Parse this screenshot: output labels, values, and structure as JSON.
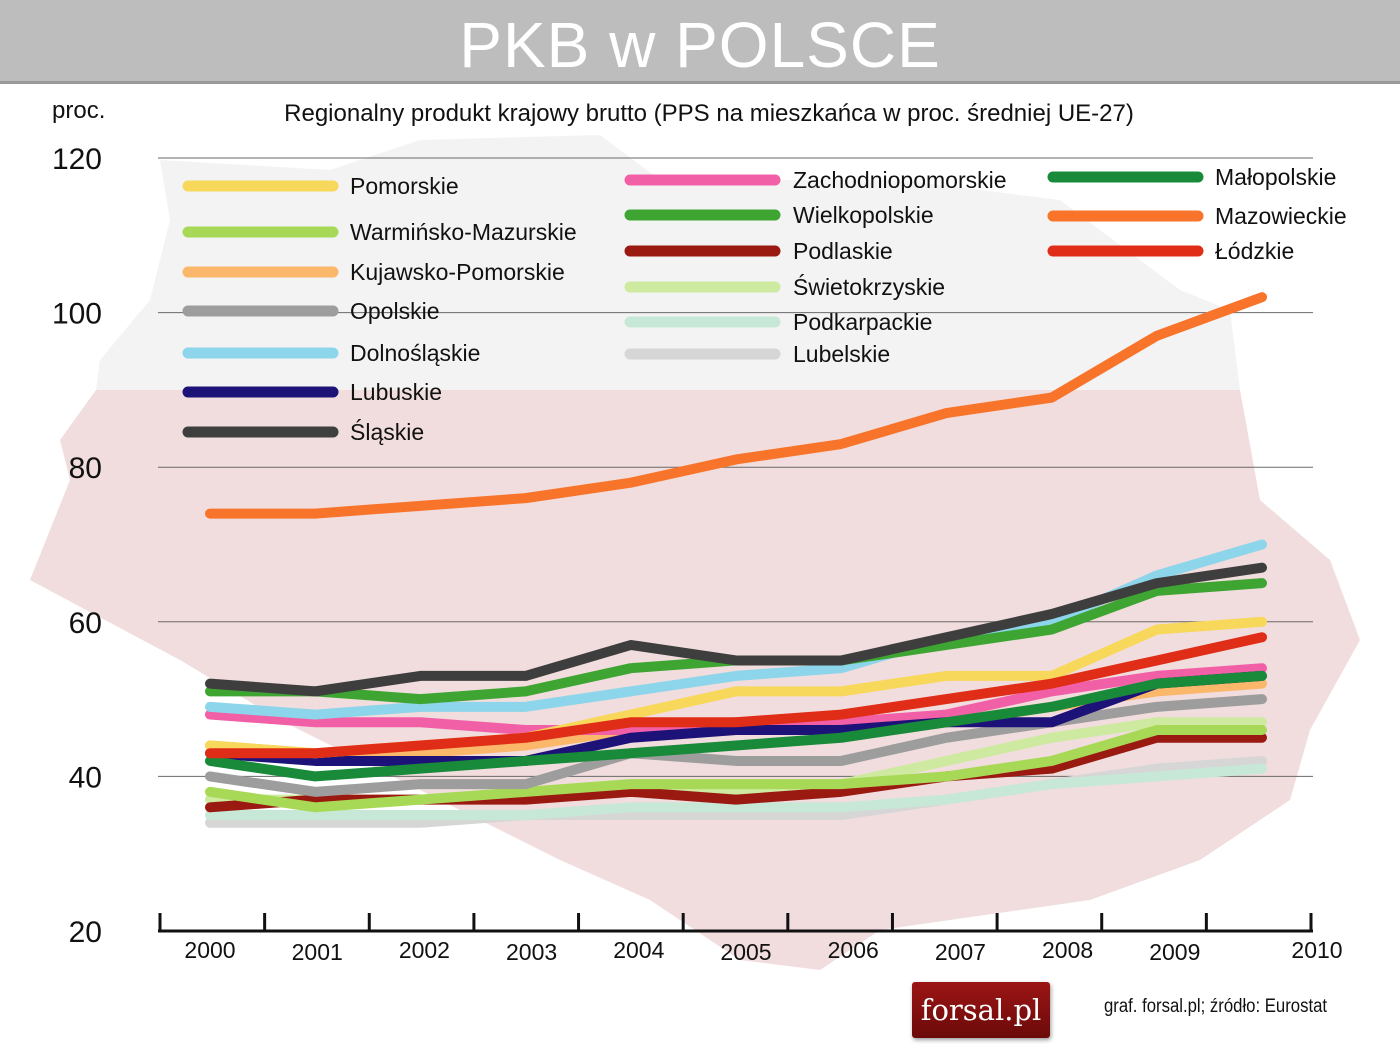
{
  "header": {
    "title": "PKB w POLSCE"
  },
  "footer": {
    "source": "graf. forsal.pl;  źródło: Eurostat",
    "logo_text": "forsal.pl"
  },
  "chart_data": {
    "type": "line",
    "title": "Regionalny produkt krajowy brutto (PPS na mieszkańca w proc. średniej UE-27)",
    "ylabel": "proc.",
    "xlabel": "",
    "ylim": [
      20,
      120
    ],
    "yticks": [
      20,
      40,
      60,
      80,
      100,
      120
    ],
    "grid": true,
    "legend_position": "top",
    "x": [
      "2000",
      "2001",
      "2002",
      "2003",
      "2004",
      "2005",
      "2006",
      "2007",
      "2008",
      "2009",
      "2010"
    ],
    "series": [
      {
        "name": "Pomorskie",
        "color": "#f7d85a",
        "values": [
          44,
          43,
          44,
          45,
          48,
          51,
          51,
          53,
          53,
          59,
          60
        ]
      },
      {
        "name": "Warmińsko-Mazurskie",
        "color": "#a8d956",
        "values": [
          38,
          36,
          37,
          38,
          39,
          39,
          39,
          40,
          42,
          46,
          46
        ]
      },
      {
        "name": "Kujawsko-Pomorskie",
        "color": "#fbb76a",
        "values": [
          44,
          43,
          43,
          44,
          46,
          46,
          46,
          47,
          49,
          51,
          52
        ]
      },
      {
        "name": "Opolskie",
        "color": "#9d9d9d",
        "values": [
          40,
          38,
          39,
          39,
          43,
          42,
          42,
          45,
          47,
          49,
          50
        ]
      },
      {
        "name": "Dolnośląskie",
        "color": "#8dd5ea",
        "values": [
          49,
          48,
          49,
          49,
          51,
          53,
          54,
          58,
          60,
          66,
          70
        ]
      },
      {
        "name": "Lubuskie",
        "color": "#1c1278",
        "values": [
          43,
          42,
          42,
          42,
          45,
          46,
          46,
          47,
          47,
          52,
          53
        ]
      },
      {
        "name": "Śląskie",
        "color": "#3e3e3e",
        "values": [
          52,
          51,
          53,
          53,
          57,
          55,
          55,
          58,
          61,
          65,
          67
        ]
      },
      {
        "name": "Zachodniopomorskie",
        "color": "#f160a7",
        "values": [
          48,
          47,
          47,
          46,
          46,
          47,
          47,
          48,
          51,
          53,
          54
        ]
      },
      {
        "name": "Wielkopolskie",
        "color": "#3ea533",
        "values": [
          51,
          51,
          50,
          51,
          54,
          55,
          55,
          57,
          59,
          64,
          65
        ]
      },
      {
        "name": "Podlaskie",
        "color": "#9a1a12",
        "values": [
          36,
          37,
          37,
          37,
          38,
          37,
          38,
          40,
          41,
          45,
          45
        ]
      },
      {
        "name": "Świetokrzyskie",
        "color": "#cdeaa0",
        "values": [
          37,
          37,
          37,
          38,
          39,
          38,
          39,
          42,
          45,
          47,
          47
        ]
      },
      {
        "name": "Podkarpackie",
        "color": "#c7e8d6",
        "values": [
          35,
          35,
          35,
          35,
          36,
          36,
          36,
          37,
          39,
          40,
          41
        ]
      },
      {
        "name": "Lubelskie",
        "color": "#d6d6d6",
        "values": [
          34,
          34,
          34,
          35,
          35,
          35,
          35,
          37,
          39,
          41,
          42
        ]
      },
      {
        "name": "Małopolskie",
        "color": "#188a3a",
        "values": [
          42,
          40,
          41,
          42,
          43,
          44,
          45,
          47,
          49,
          52,
          53
        ]
      },
      {
        "name": "Mazowieckie",
        "color": "#f8742a",
        "values": [
          74,
          74,
          75,
          76,
          78,
          81,
          83,
          87,
          89,
          97,
          102
        ]
      },
      {
        "name": "Łódzkie",
        "color": "#e02d17",
        "values": [
          43,
          43,
          44,
          45,
          47,
          47,
          48,
          50,
          52,
          55,
          58
        ]
      }
    ]
  }
}
